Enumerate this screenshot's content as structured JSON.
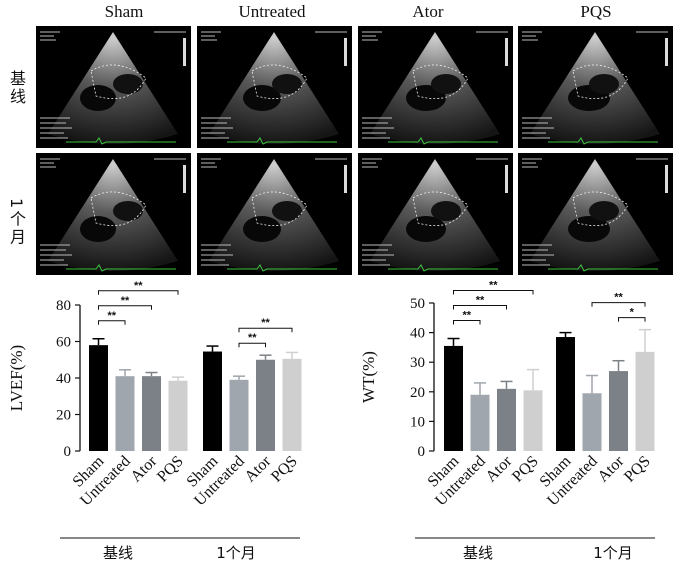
{
  "panel_headers": {
    "columns": [
      "Sham",
      "Untreated",
      "Ator",
      "PQS"
    ],
    "rows": [
      "基线",
      "1个月"
    ]
  },
  "chart_data": [
    {
      "type": "bar",
      "ylabel": "LVEF(%)",
      "ylim": [
        0,
        80
      ],
      "yticks": [
        0,
        20,
        40,
        60,
        80
      ],
      "categories": [
        "Sham",
        "Untreated",
        "Ator",
        "PQS"
      ],
      "groups": [
        "基线",
        "1个月"
      ],
      "series": [
        {
          "values": [
            58,
            41,
            41,
            38.5
          ],
          "errors": [
            3.5,
            3.5,
            2,
            2
          ]
        },
        {
          "values": [
            54.5,
            39,
            50,
            50.5
          ],
          "errors": [
            3,
            2,
            2.5,
            3.5
          ]
        }
      ],
      "colors": [
        "#000000",
        "#a0a6ae",
        "#7c8087",
        "#cfcfcf"
      ],
      "significance": [
        {
          "group": 0,
          "from": 0,
          "to": 1,
          "label": "**"
        },
        {
          "group": 0,
          "from": 0,
          "to": 2,
          "label": "**"
        },
        {
          "group": 0,
          "from": 0,
          "to": 3,
          "label": "**"
        },
        {
          "group": 1,
          "from": 1,
          "to": 2,
          "label": "**"
        },
        {
          "group": 1,
          "from": 1,
          "to": 3,
          "label": "**"
        }
      ]
    },
    {
      "type": "bar",
      "ylabel": "WT(%)",
      "ylim": [
        0,
        50
      ],
      "yticks": [
        0,
        10,
        20,
        30,
        40,
        50
      ],
      "categories": [
        "Sham",
        "Untreated",
        "Ator",
        "PQS"
      ],
      "groups": [
        "基线",
        "1个月"
      ],
      "series": [
        {
          "values": [
            35.5,
            19,
            21,
            20.5
          ],
          "errors": [
            2.5,
            4,
            2.5,
            7
          ]
        },
        {
          "values": [
            38.5,
            19.5,
            27,
            33.5
          ],
          "errors": [
            1.5,
            6,
            3.5,
            7.5
          ]
        }
      ],
      "colors": [
        "#000000",
        "#a0a6ae",
        "#7c8087",
        "#cfcfcf"
      ],
      "significance": [
        {
          "group": 0,
          "from": 0,
          "to": 1,
          "label": "**"
        },
        {
          "group": 0,
          "from": 0,
          "to": 2,
          "label": "**"
        },
        {
          "group": 0,
          "from": 0,
          "to": 3,
          "label": "**"
        },
        {
          "group": 1,
          "from": 1,
          "to": 3,
          "label": "**"
        },
        {
          "group": 1,
          "from": 2,
          "to": 3,
          "label": "*"
        }
      ]
    }
  ]
}
